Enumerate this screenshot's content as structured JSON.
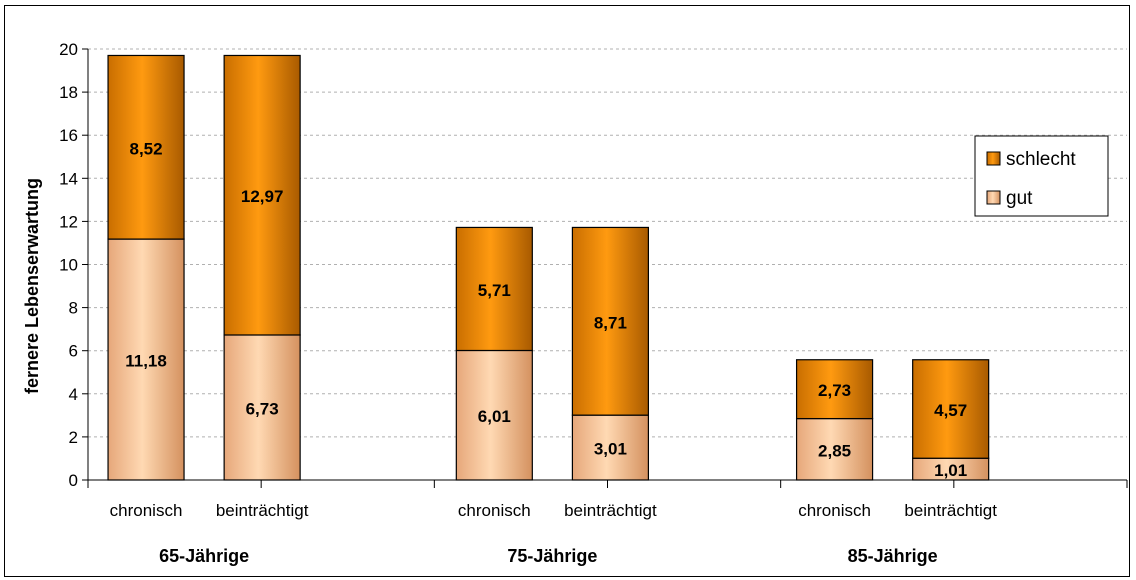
{
  "chart_data": {
    "type": "bar",
    "stacked": true,
    "ylabel": "fernere Lebenserwartung",
    "ylim": [
      0,
      20
    ],
    "yticks": [
      "0",
      "2",
      "4",
      "6",
      "8",
      "10",
      "12",
      "14",
      "16",
      "18",
      "20"
    ],
    "grid": true,
    "legend_position": "right",
    "groups": [
      "65-Jährige",
      "75-Jährige",
      "85-Jährige"
    ],
    "categories": [
      "chronisch",
      "beinträchtigt",
      "chronisch",
      "beinträchtigt",
      "chronisch",
      "beinträchtigt"
    ],
    "series": [
      {
        "name": "gut",
        "color": "#fcc99c",
        "values": [
          11.18,
          6.73,
          6.01,
          3.01,
          2.85,
          1.01
        ],
        "labels": [
          "11,18",
          "6,73",
          "6,01",
          "3,01",
          "2,85",
          "1,01"
        ]
      },
      {
        "name": "schlecht",
        "color": "#f58c00",
        "values": [
          8.52,
          12.97,
          5.71,
          8.71,
          2.73,
          4.57
        ],
        "labels": [
          "8,52",
          "12,97",
          "5,71",
          "8,71",
          "2,73",
          "4,57"
        ]
      }
    ],
    "legend": [
      "schlecht",
      "gut"
    ]
  }
}
